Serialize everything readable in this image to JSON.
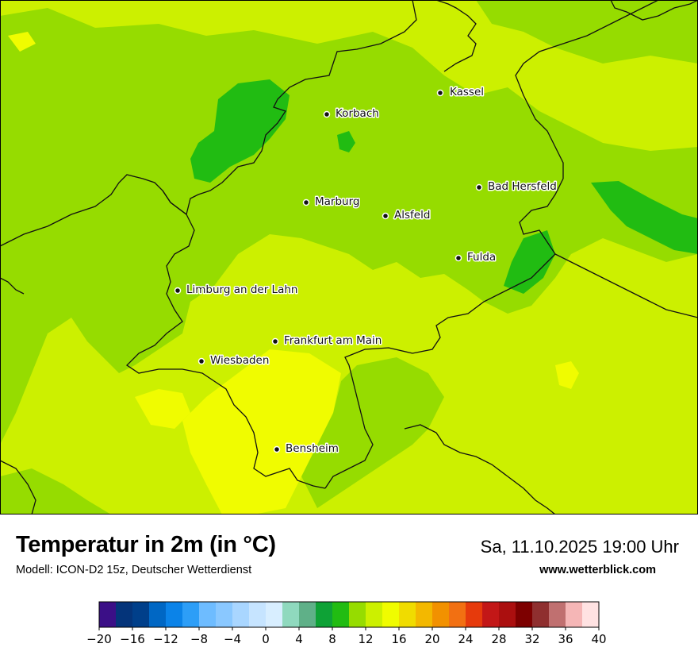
{
  "map": {
    "cities": [
      {
        "name": "Kassel",
        "temp": 15.5
      },
      {
        "name": "Korbach",
        "temp": 11
      },
      {
        "name": "Bad Hersfeld",
        "temp": 12
      },
      {
        "name": "Marburg",
        "temp": 12.5
      },
      {
        "name": "Alsfeld",
        "temp": 12
      },
      {
        "name": "Fulda",
        "temp": 12.5
      },
      {
        "name": "Limburg an der Lahn",
        "temp": 13.5
      },
      {
        "name": "Frankfurt am Main",
        "temp": 15
      },
      {
        "name": "Wiesbaden",
        "temp": 14
      },
      {
        "name": "Bensheim",
        "temp": 15.5
      }
    ],
    "colors": {
      "t10": "#21bc12",
      "t12": "#96dc00",
      "t14": "#ccf000",
      "t16": "#f0fc00"
    }
  },
  "footer": {
    "title": "Temperatur in 2m (in °C)",
    "model": "Modell: ICON-D2 15z, Deutscher Wetterdienst",
    "datetime": "Sa, 11.10.2025 19:00 Uhr",
    "website": "www.wetterblick.com"
  },
  "legend": {
    "min": -20,
    "max": 40,
    "step": 2,
    "tick_labels": [
      "−20",
      "−16",
      "−12",
      "−8",
      "−4",
      "0",
      "4",
      "8",
      "12",
      "16",
      "20",
      "24",
      "28",
      "32",
      "36",
      "40"
    ],
    "colors": [
      "#3b0f87",
      "#04347a",
      "#003f8a",
      "#0067c4",
      "#0b83e8",
      "#2d9ef7",
      "#6ebcff",
      "#8ac8ff",
      "#a9d6ff",
      "#c6e4ff",
      "#d8eeff",
      "#8fd9be",
      "#5fb088",
      "#0ea236",
      "#21bc12",
      "#96dc00",
      "#ccf000",
      "#f0fc00",
      "#f0dc00",
      "#f3b800",
      "#f29100",
      "#f27012",
      "#e63a0c",
      "#c31717",
      "#ab0f0f",
      "#7d0000",
      "#8f2f2f",
      "#c07070",
      "#f5b6b6",
      "#ffe2e2"
    ]
  }
}
